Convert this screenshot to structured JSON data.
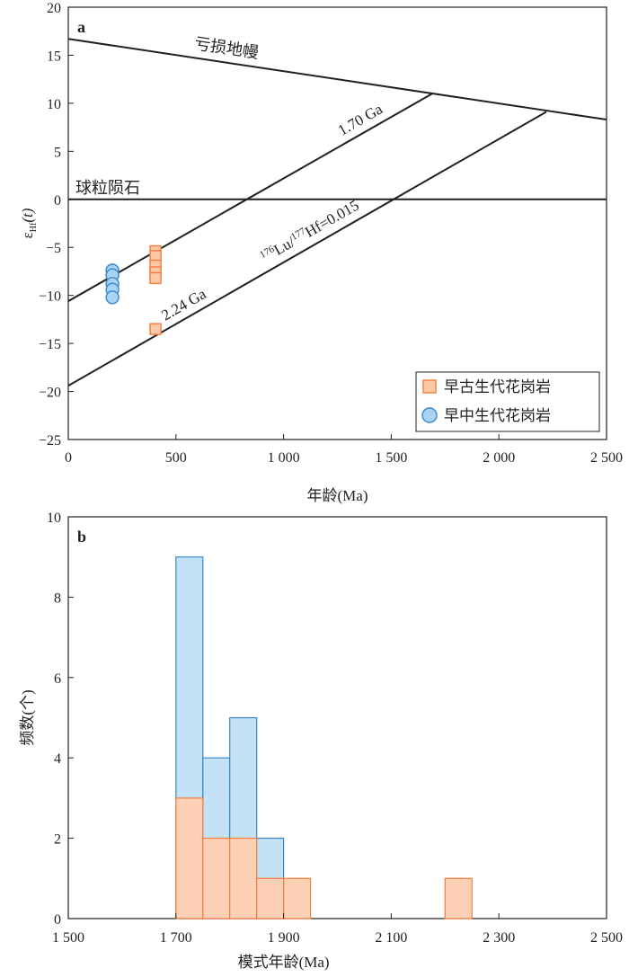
{
  "chart_data": [
    {
      "panel_label": "a",
      "type": "scatter",
      "title": "",
      "xlabel": "年龄(Ma)",
      "ylabel_main": "ε",
      "ylabel_sub": "Hf",
      "ylabel_paren": "(t)",
      "xlim": [
        0,
        2500
      ],
      "ylim": [
        -25,
        20
      ],
      "x_ticks": [
        0,
        500,
        1000,
        1500,
        2000,
        2500
      ],
      "x_tick_labels": [
        "0",
        "500",
        "1 000",
        "1 500",
        "2 000",
        "2 500"
      ],
      "y_ticks": [
        -25,
        -20,
        -15,
        -10,
        -5,
        0,
        5,
        10,
        15,
        20
      ],
      "y_tick_labels": [
        "−25",
        "−20",
        "−15",
        "−10",
        "−5",
        "0",
        "5",
        "10",
        "15",
        "20"
      ],
      "reference_lines": [
        {
          "name": "depleted_mantle",
          "label": "亏损地幔",
          "x": [
            0,
            2500
          ],
          "y": [
            16.7,
            8.3
          ]
        },
        {
          "name": "chondrite",
          "label": "球粒陨石",
          "x": [
            0,
            2500
          ],
          "y": [
            0,
            0
          ]
        },
        {
          "name": "line_1_70",
          "label": "1.70 Ga",
          "x": [
            0,
            1690
          ],
          "y": [
            -10.6,
            11.0
          ]
        },
        {
          "name": "line_2_24",
          "label": "2.24 Ga",
          "x": [
            0,
            2220
          ],
          "y": [
            -19.4,
            9.1
          ]
        }
      ],
      "annotation": {
        "sup1": "176",
        "text1": "Lu/",
        "sup2": "177",
        "text2": "Hf=0.015"
      },
      "series": [
        {
          "name": "早古生代花岗岩",
          "marker": "square",
          "color": "#f47c3c",
          "fill": "#fbc8a8",
          "points": [
            [
              405,
              -5.4
            ],
            [
              405,
              -5.9
            ],
            [
              405,
              -6.9
            ],
            [
              405,
              -7.6
            ],
            [
              405,
              -8.2
            ],
            [
              405,
              -13.5
            ]
          ]
        },
        {
          "name": "早中生代花岗岩",
          "marker": "circle",
          "color": "#3a87c8",
          "fill": "#a9d3f2",
          "points": [
            [
              205,
              -7.4
            ],
            [
              205,
              -7.9
            ],
            [
              205,
              -8.8
            ],
            [
              205,
              -9.4
            ],
            [
              205,
              -10.2
            ]
          ]
        }
      ],
      "legend_position": "bottom-right"
    },
    {
      "panel_label": "b",
      "type": "bar",
      "title": "",
      "xlabel": "模式年龄(Ma)",
      "ylabel": "频数(个)",
      "xlim": [
        1500,
        2500
      ],
      "ylim": [
        0,
        10
      ],
      "x_ticks": [
        1500,
        1700,
        1900,
        2100,
        2300,
        2500
      ],
      "x_tick_labels": [
        "1 500",
        "1 700",
        "1 900",
        "2 100",
        "2 300",
        "2 500"
      ],
      "y_ticks": [
        0,
        2,
        4,
        6,
        8,
        10
      ],
      "y_tick_labels": [
        "0",
        "2",
        "4",
        "6",
        "8",
        "10"
      ],
      "bin_width": 50,
      "series": [
        {
          "name": "早中生代花岗岩",
          "color": "#3a87c8",
          "fill": "#c3e2f6",
          "bins": [
            [
              1700,
              9
            ],
            [
              1750,
              4
            ],
            [
              1800,
              5
            ],
            [
              1850,
              2
            ]
          ]
        },
        {
          "name": "早古生代花岗岩",
          "color": "#f47c3c",
          "fill": "#fcd1b6",
          "bins": [
            [
              1700,
              3
            ],
            [
              1750,
              2
            ],
            [
              1800,
              2
            ],
            [
              1850,
              1
            ],
            [
              1900,
              1
            ],
            [
              2200,
              1
            ]
          ]
        }
      ]
    }
  ]
}
